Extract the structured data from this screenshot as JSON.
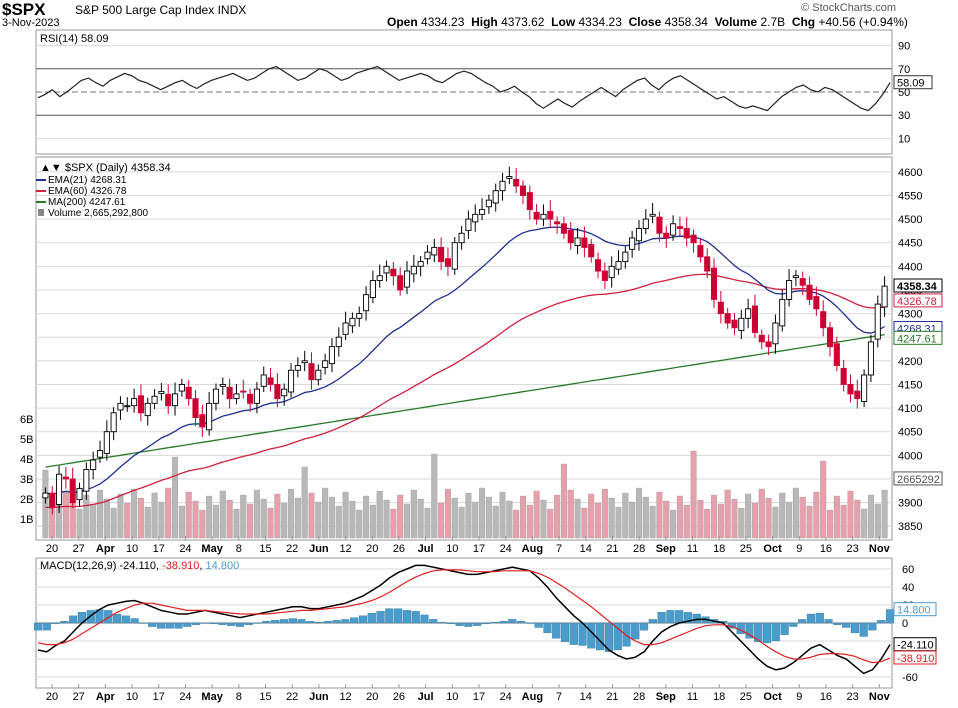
{
  "header": {
    "symbol": "$SPX",
    "name": "S&P 500 Large Cap Index",
    "exchange": "INDX",
    "date": "3-Nov-2023",
    "open_label": "Open",
    "open": "4334.23",
    "high_label": "High",
    "high": "4373.62",
    "low_label": "Low",
    "low": "4334.23",
    "close_label": "Close",
    "close": "4358.34",
    "volume_label": "Volume",
    "volume": "2.7B",
    "chg_label": "Chg",
    "chg": "+40.56 (+0.94%)",
    "brand": "© StockCharts.com"
  },
  "colors": {
    "up": "#000000",
    "down": "#cc0033",
    "ema21": "#1f2f8f",
    "ema60": "#d0203f",
    "ma200": "#2a7a2a",
    "rsi": "#222222",
    "volume": "#b8b8b8",
    "volume_down": "#e6a0ac",
    "macd": "#000000",
    "signal": "#e02020",
    "hist": "#4a9ccc",
    "grid": "#d8d8d8",
    "panel_bg": "#ffffff"
  },
  "chart_data": [
    {
      "type": "line",
      "panel": "rsi",
      "title": "RSI(14) 58.09",
      "last_value": "58.09",
      "y_ticks": [
        "90",
        "70",
        "50",
        "30",
        "10"
      ],
      "ylim": [
        0,
        100
      ],
      "values": [
        45,
        48,
        52,
        46,
        50,
        55,
        60,
        62,
        58,
        55,
        60,
        63,
        66,
        64,
        60,
        58,
        55,
        52,
        55,
        58,
        60,
        56,
        53,
        57,
        60,
        62,
        64,
        66,
        63,
        60,
        62,
        66,
        70,
        72,
        68,
        64,
        60,
        62,
        66,
        70,
        68,
        64,
        60,
        62,
        66,
        68,
        70,
        72,
        68,
        64,
        60,
        62,
        64,
        66,
        64,
        60,
        58,
        62,
        66,
        68,
        66,
        62,
        58,
        55,
        50,
        52,
        55,
        50,
        46,
        40,
        36,
        40,
        44,
        40,
        37,
        42,
        46,
        50,
        54,
        50,
        46,
        52,
        56,
        60,
        62,
        56,
        52,
        58,
        62,
        64,
        60,
        56,
        52,
        48,
        44,
        46,
        42,
        38,
        36,
        38,
        36,
        34,
        40,
        46,
        50,
        54,
        56,
        52,
        50,
        54,
        52,
        48,
        44,
        40,
        36,
        34,
        40,
        48,
        58
      ]
    },
    {
      "type": "candlestick",
      "panel": "price",
      "title": "$SPX (Daily) 4358.34",
      "legend": [
        {
          "name": "EMA(21)",
          "value": "4268.31",
          "color": "#1f2f8f"
        },
        {
          "name": "EMA(60)",
          "value": "4326.78",
          "color": "#d0203f"
        },
        {
          "name": "MA(200)",
          "value": "4247.61",
          "color": "#2a7a2a"
        },
        {
          "name": "Volume",
          "value": "2,665,292,800",
          "color": "#888888"
        }
      ],
      "y_ticks": [
        "4600",
        "4550",
        "4500",
        "4450",
        "4400",
        "4350",
        "4300",
        "4250",
        "4200",
        "4150",
        "4100",
        "4050",
        "4000",
        "3950",
        "3900",
        "3850"
      ],
      "ylim": [
        3825,
        4625
      ],
      "vol_ticks": [
        "6B",
        "5B",
        "4B",
        "3B",
        "2B",
        "1B"
      ],
      "last_tags": [
        {
          "value": "4358.34",
          "y": 4358.34,
          "color": "#000000"
        },
        {
          "value": "4326.78",
          "y": 4326.78,
          "color": "#d0203f"
        },
        {
          "value": "4268.31",
          "y": 4268.31,
          "color": "#1f2f8f"
        },
        {
          "value": "4247.61",
          "y": 4247.61,
          "color": "#2a7a2a"
        },
        {
          "value": "2665292",
          "y": 3950,
          "color": "#555555"
        }
      ],
      "x_labels": [
        "20",
        "27",
        "Apr",
        "10",
        "17",
        "24",
        "May",
        "8",
        "15",
        "22",
        "Jun",
        "12",
        "20",
        "26",
        "Jul",
        "10",
        "17",
        "24",
        "Aug",
        "7",
        "14",
        "21",
        "28",
        "Sep",
        "11",
        "18",
        "25",
        "Oct",
        "9",
        "16",
        "23",
        "Nov"
      ],
      "closes": [
        3920,
        3890,
        3960,
        3950,
        3900,
        3930,
        3970,
        3990,
        4010,
        4050,
        4090,
        4110,
        4105,
        4120,
        4090,
        4110,
        4125,
        4135,
        4105,
        4130,
        4150,
        4120,
        4080,
        4060,
        4110,
        4140,
        4150,
        4120,
        4130,
        4135,
        4110,
        4140,
        4170,
        4150,
        4120,
        4140,
        4180,
        4190,
        4200,
        4160,
        4180,
        4200,
        4230,
        4250,
        4280,
        4290,
        4300,
        4340,
        4370,
        4380,
        4400,
        4380,
        4350,
        4390,
        4400,
        4410,
        4430,
        4440,
        4410,
        4400,
        4450,
        4470,
        4500,
        4510,
        4520,
        4540,
        4560,
        4580,
        4590,
        4570,
        4550,
        4520,
        4500,
        4510,
        4500,
        4490,
        4470,
        4450,
        4460,
        4440,
        4420,
        4390,
        4370,
        4400,
        4410,
        4430,
        4460,
        4480,
        4500,
        4510,
        4470,
        4460,
        4490,
        4480,
        4460,
        4450,
        4420,
        4390,
        4330,
        4300,
        4280,
        4270,
        4290,
        4310,
        4260,
        4240,
        4230,
        4280,
        4330,
        4370,
        4380,
        4360,
        4330,
        4310,
        4270,
        4230,
        4190,
        4150,
        4130,
        4120,
        4170,
        4240,
        4320,
        4358
      ]
    },
    {
      "type": "line",
      "panel": "macd",
      "title": "MACD(12,26,9) -24.110, -38.910, 14.800",
      "values_label": {
        "name": "MACD(12,26,9)",
        "macd": "-24.110",
        "signal": "-38.910",
        "hist": "14.800"
      },
      "y_ticks": [
        "60",
        "40",
        "20",
        "0",
        "-20",
        "-40",
        "-60"
      ],
      "ylim": [
        -70,
        70
      ],
      "macd": [
        -30,
        -32,
        -25,
        -20,
        -10,
        0,
        8,
        15,
        20,
        22,
        24,
        25,
        22,
        18,
        14,
        12,
        10,
        10,
        12,
        14,
        12,
        10,
        8,
        6,
        8,
        10,
        12,
        14,
        16,
        18,
        18,
        16,
        16,
        18,
        20,
        22,
        26,
        30,
        36,
        42,
        50,
        56,
        60,
        64,
        64,
        62,
        60,
        58,
        56,
        54,
        54,
        56,
        58,
        60,
        62,
        60,
        58,
        50,
        40,
        28,
        18,
        8,
        0,
        -10,
        -20,
        -30,
        -36,
        -40,
        -38,
        -32,
        -20,
        -10,
        -4,
        0,
        2,
        4,
        4,
        2,
        0,
        -10,
        -20,
        -30,
        -40,
        -48,
        -52,
        -50,
        -44,
        -36,
        -28,
        -24,
        -30,
        -36,
        -40,
        -48,
        -56,
        -52,
        -40,
        -24
      ],
      "signal": [
        -22,
        -24,
        -24,
        -22,
        -18,
        -12,
        -6,
        0,
        6,
        12,
        16,
        20,
        22,
        22,
        20,
        18,
        16,
        14,
        14,
        14,
        13,
        12,
        11,
        10,
        10,
        10,
        10,
        11,
        12,
        13,
        14,
        14,
        15,
        16,
        17,
        18,
        20,
        22,
        25,
        29,
        34,
        40,
        46,
        51,
        55,
        58,
        59,
        59,
        59,
        58,
        57,
        57,
        57,
        58,
        58,
        58,
        58,
        55,
        51,
        45,
        39,
        32,
        25,
        18,
        10,
        2,
        -6,
        -14,
        -20,
        -24,
        -24,
        -22,
        -18,
        -14,
        -10,
        -6,
        -3,
        -2,
        -2,
        -4,
        -8,
        -13,
        -19,
        -26,
        -32,
        -37,
        -40,
        -40,
        -38,
        -35,
        -34,
        -34,
        -35,
        -37,
        -41,
        -44,
        -43,
        -39
      ],
      "hist": [
        -8,
        -8,
        -1,
        2,
        8,
        12,
        14,
        15,
        14,
        10,
        8,
        5,
        0,
        -4,
        -6,
        -6,
        -6,
        -4,
        -2,
        0,
        -1,
        -2,
        -3,
        -4,
        -2,
        0,
        2,
        3,
        4,
        5,
        4,
        2,
        1,
        2,
        3,
        4,
        6,
        8,
        11,
        13,
        16,
        16,
        14,
        13,
        9,
        4,
        1,
        -1,
        -3,
        -4,
        -3,
        -1,
        1,
        2,
        4,
        2,
        0,
        -5,
        -11,
        -17,
        -21,
        -24,
        -25,
        -28,
        -30,
        -32,
        -30,
        -26,
        -18,
        -8,
        4,
        12,
        14,
        14,
        12,
        10,
        7,
        4,
        2,
        -6,
        -12,
        -17,
        -21,
        -22,
        -20,
        -13,
        -4,
        4,
        10,
        11,
        4,
        -2,
        -5,
        -11,
        -15,
        -8,
        3,
        15
      ]
    }
  ]
}
